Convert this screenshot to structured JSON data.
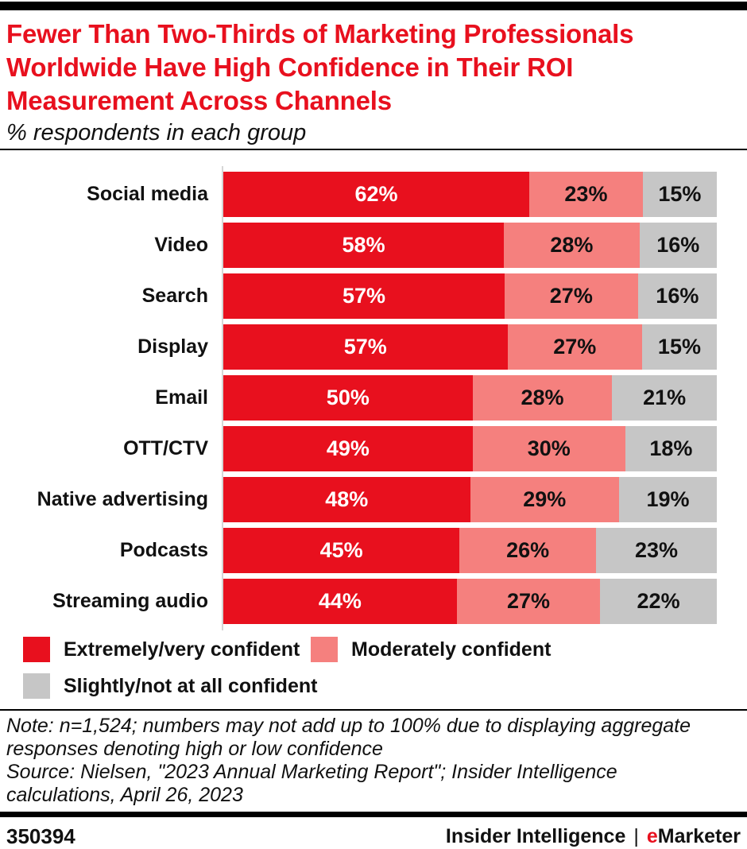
{
  "header": {
    "title": "Fewer Than Two-Thirds of Marketing Professionals Worldwide Have High Confidence in Their ROI Measurement Across Channels",
    "subtitle": "% respondents in each group"
  },
  "chart_data": {
    "type": "bar",
    "orientation": "horizontal",
    "stacked": true,
    "normalized_to_full_width": true,
    "title": "Fewer Than Two-Thirds of Marketing Professionals Worldwide Have High Confidence in Their ROI Measurement Across Channels",
    "subtitle": "% respondents in each group",
    "value_suffix": "%",
    "xlim": [
      0,
      100
    ],
    "grid": false,
    "legend_position": "bottom-left",
    "categories": [
      "Social media",
      "Video",
      "Search",
      "Display",
      "Email",
      "OTT/CTV",
      "Native advertising",
      "Podcasts",
      "Streaming audio"
    ],
    "series": [
      {
        "name": "Extremely/very confident",
        "color": "#e8101e",
        "label_color": "#ffffff",
        "values": [
          62,
          58,
          57,
          57,
          50,
          49,
          48,
          45,
          44
        ]
      },
      {
        "name": "Moderately confident",
        "color": "#f5807e",
        "label_color": "#111111",
        "values": [
          23,
          28,
          27,
          27,
          28,
          30,
          29,
          26,
          27
        ]
      },
      {
        "name": "Slightly/not at all confident",
        "color": "#c6c6c6",
        "label_color": "#111111",
        "values": [
          15,
          16,
          16,
          15,
          21,
          18,
          19,
          23,
          22
        ]
      }
    ]
  },
  "notes": {
    "note": "Note: n=1,524; numbers may not add up to 100% due to displaying aggregate responses denoting high or low confidence",
    "source": "Source: Nielsen, \"2023 Annual Marketing Report\"; Insider Intelligence calculations, April 26, 2023"
  },
  "footer": {
    "chart_id": "350394",
    "brand_left": "Insider Intelligence",
    "separator": "|",
    "brand_e": "e",
    "brand_rest": "Marketer"
  },
  "colors": {
    "accent_red": "#e8101e",
    "pink": "#f5807e",
    "gray": "#c6c6c6",
    "axis_line": "#d6d6d6",
    "divider_black": "#000000",
    "text": "#111111",
    "background": "#ffffff"
  }
}
